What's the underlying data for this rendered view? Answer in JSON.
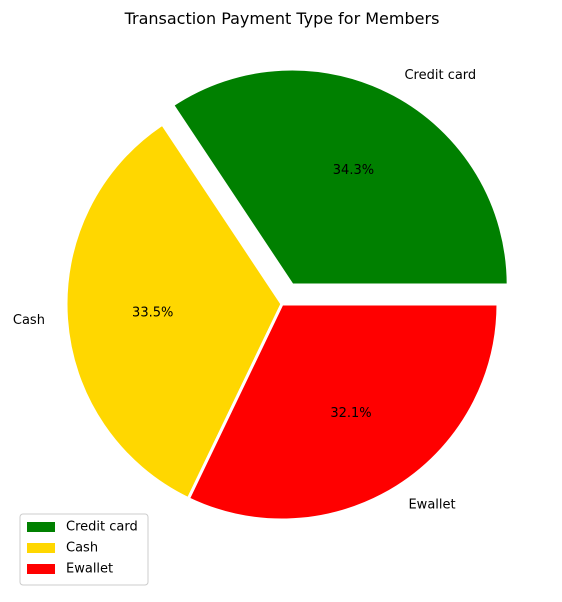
{
  "chart_data": {
    "type": "pie",
    "title": "Transaction Payment Type for Members",
    "categories": [
      "Credit card",
      "Cash",
      "Ewallet"
    ],
    "values": [
      34.3,
      33.5,
      32.1
    ],
    "value_labels": [
      "34.3%",
      "33.5%",
      "32.1%"
    ],
    "colors": [
      "#008000",
      "#ffd700",
      "#ff0000"
    ],
    "exploded": [
      true,
      false,
      false
    ],
    "start_angle_deg": 0,
    "direction": "counterclockwise",
    "legend": {
      "placement": "lower-left",
      "entries": [
        "Credit card",
        "Cash",
        "Ewallet"
      ]
    }
  }
}
